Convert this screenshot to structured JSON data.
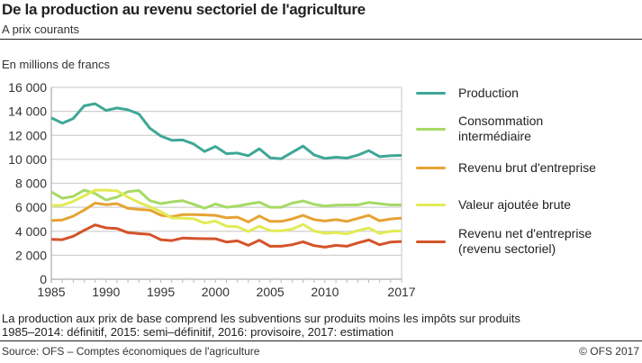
{
  "header": {
    "title": "De la production au revenu sectoriel de l'agriculture",
    "subtitle": "A prix courants"
  },
  "footer": {
    "note_line1": "La production aux prix de base comprend les subventions sur produits moins les impôts sur produits",
    "note_line2": "1985–2014: définitif, 2015: semi–définitif, 2016: provisoire, 2017: estimation",
    "source": "Source: OFS – Comptes économiques de l'agriculture",
    "copyright": "© OFS  2017"
  },
  "chart_data": {
    "type": "line",
    "title": "De la production au revenu sectoriel de l'agriculture",
    "subtitle": "A prix courants",
    "ylabel": "En millions de francs",
    "xlabel": "",
    "xlim": [
      1985,
      2017
    ],
    "ylim": [
      0,
      16000
    ],
    "grid": true,
    "legend_position": "right",
    "x_ticks": [
      "1985",
      "1990",
      "1995",
      "2000",
      "2005",
      "2010",
      "2017"
    ],
    "x_tick_values": [
      1985,
      1990,
      1995,
      2000,
      2005,
      2010,
      2017
    ],
    "y_ticks": [
      "0",
      "2 000",
      "4 000",
      "6 000",
      "8 000",
      "10 000",
      "12 000",
      "14 000",
      "16 000"
    ],
    "y_tick_values": [
      0,
      2000,
      4000,
      6000,
      8000,
      10000,
      12000,
      14000,
      16000
    ],
    "x": [
      1985,
      1986,
      1987,
      1988,
      1989,
      1990,
      1991,
      1992,
      1993,
      1994,
      1995,
      1996,
      1997,
      1998,
      1999,
      2000,
      2001,
      2002,
      2003,
      2004,
      2005,
      2006,
      2007,
      2008,
      2009,
      2010,
      2011,
      2012,
      2013,
      2014,
      2015,
      2016,
      2017
    ],
    "series": [
      {
        "name": "Production",
        "color": "#3fa796",
        "values": [
          13450,
          13020,
          13400,
          14460,
          14640,
          14080,
          14280,
          14130,
          13780,
          12600,
          11940,
          11590,
          11610,
          11280,
          10650,
          11075,
          10475,
          10525,
          10300,
          10875,
          10125,
          10050,
          10575,
          11100,
          10375,
          10075,
          10175,
          10100,
          10350,
          10725,
          10225,
          10300,
          10325
        ]
      },
      {
        "name": "Consommation intermédiaire",
        "label_lines": [
          "Consommation",
          "intermédiaire"
        ],
        "color": "#a6da66",
        "values": [
          7280,
          6750,
          6900,
          7430,
          7150,
          6600,
          6850,
          7300,
          7400,
          6550,
          6300,
          6450,
          6550,
          6250,
          5920,
          6275,
          6000,
          6100,
          6275,
          6425,
          6000,
          6000,
          6350,
          6525,
          6250,
          6100,
          6175,
          6200,
          6200,
          6400,
          6300,
          6200,
          6200
        ]
      },
      {
        "name": "Revenu brut d'entreprise",
        "color": "#e6a333",
        "values": [
          4890,
          4940,
          5260,
          5770,
          6350,
          6220,
          6300,
          5920,
          5820,
          5770,
          5340,
          5210,
          5390,
          5390,
          5365,
          5325,
          5125,
          5175,
          4775,
          5275,
          4825,
          4825,
          5025,
          5325,
          4975,
          4850,
          4975,
          4825,
          5075,
          5325,
          4875,
          5025,
          5100
        ]
      },
      {
        "name": "Valeur ajoutée brute",
        "color": "#e2eb55",
        "values": [
          6150,
          6170,
          6500,
          6950,
          7430,
          7430,
          7380,
          6850,
          6400,
          6050,
          5640,
          5110,
          5090,
          5040,
          4680,
          4850,
          4425,
          4375,
          3975,
          4425,
          4050,
          4025,
          4175,
          4575,
          4025,
          3825,
          3900,
          3775,
          4050,
          4275,
          3825,
          4000,
          4025
        ]
      },
      {
        "name": "Revenu net d'entreprise (revenu sectoriel)",
        "label_lines": [
          "Revenu net d'entreprise",
          "(revenu sectoriel)"
        ],
        "color": "#d4532a",
        "values": [
          3320,
          3300,
          3580,
          4080,
          4530,
          4280,
          4230,
          3880,
          3800,
          3730,
          3300,
          3220,
          3430,
          3400,
          3380,
          3375,
          3100,
          3200,
          2825,
          3250,
          2750,
          2750,
          2875,
          3125,
          2800,
          2675,
          2825,
          2750,
          3025,
          3275,
          2875,
          3100,
          3150
        ]
      }
    ]
  }
}
